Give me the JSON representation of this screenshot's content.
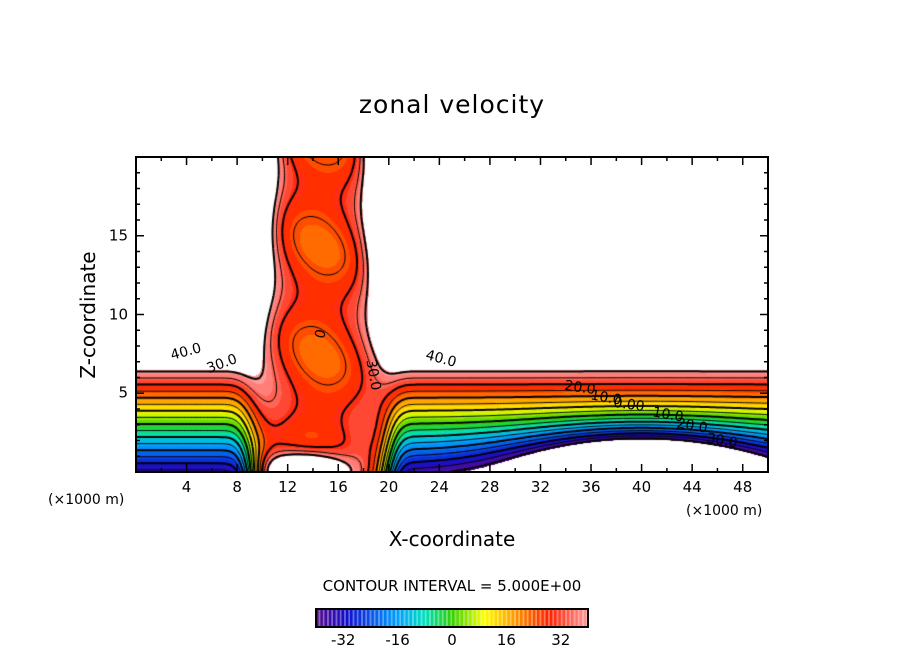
{
  "chart_data": {
    "type": "contour",
    "title": "zonal velocity",
    "xlabel": "X-coordinate",
    "ylabel": "Z-coordinate",
    "x_unit_left": "(×1000 m)",
    "x_unit_right": "(×1000 m)",
    "xlim": [
      0,
      50
    ],
    "ylim": [
      0,
      20
    ],
    "x_ticks": [
      "4",
      "8",
      "12",
      "16",
      "20",
      "24",
      "28",
      "32",
      "36",
      "40",
      "44",
      "48"
    ],
    "y_ticks": [
      "5",
      "10",
      "15"
    ],
    "contour_interval_text": "CONTOUR INTERVAL = 5.000E+00",
    "contour_interval": 5,
    "contour_labels": [
      "40.0",
      "30.0",
      "0",
      "30.0",
      "40.0",
      "20.0",
      "10.0",
      "0.00",
      "10.0",
      "20.0",
      "30.0"
    ],
    "colorbar": {
      "range": [
        -40,
        40
      ],
      "ticks": [
        "-32",
        "-16",
        "0",
        "16",
        "32"
      ]
    },
    "features": [
      {
        "name": "vertical jet core",
        "x_center": 15,
        "value_approx": 25
      },
      {
        "name": "upper outer region",
        "value": "above 40 (white)"
      },
      {
        "name": "negative vortex",
        "x_center": 40,
        "z_center": 0,
        "value_min": "below -40 (white)"
      }
    ]
  },
  "colors": {
    "min": "#5a0a8c",
    "mid": "#30d000",
    "max": "#ff9a9a"
  }
}
